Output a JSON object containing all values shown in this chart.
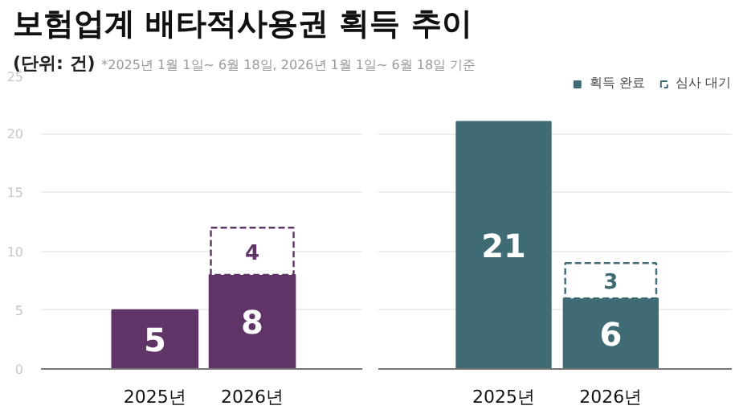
{
  "chart_data": [
    {
      "type": "bar",
      "title": "보험업계 배타적사용권 획득 추이",
      "subtitle": "(단위: 건)",
      "annotations": [
        "*2025년 1월 1일~ 6월 18일, 2026년 1월 1일~ 6월 18일 기준"
      ],
      "categories": [
        "2025년",
        "2026년"
      ],
      "stacked": true,
      "ylim": [
        0,
        25
      ],
      "yticks": [
        0,
        5,
        10,
        15,
        20,
        25
      ],
      "grid": "y",
      "data_labels": true,
      "series": [
        {
          "color": "#5e3566",
          "values": [
            5,
            8
          ]
        },
        {
          "color": "#5e3566",
          "line_style": "dashed",
          "values": [
            null,
            4
          ]
        }
      ]
    },
    {
      "type": "bar",
      "categories": [
        "2025년",
        "2026년"
      ],
      "stacked": true,
      "ylim": [
        0,
        25
      ],
      "yticks": [
        0,
        5,
        10,
        15,
        20,
        25
      ],
      "grid": "y",
      "data_labels": true,
      "tick_labels": "x",
      "legend": "top right",
      "series": [
        {
          "name": "획득 완료",
          "color": "#3f6b74",
          "values": [
            21,
            6
          ]
        },
        {
          "name": "심사 대기",
          "color": "#3f6b74",
          "line_style": "dashed",
          "values": [
            null,
            3
          ]
        }
      ]
    }
  ]
}
